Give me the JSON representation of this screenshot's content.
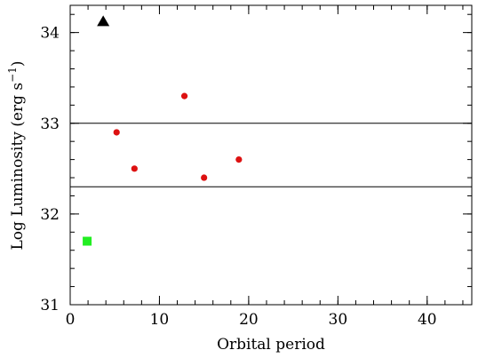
{
  "chart_data": {
    "type": "scatter",
    "xlabel": "Orbital period",
    "ylabel_main": "Log Luminosity (erg s",
    "ylabel_sup": "−1",
    "ylabel_close": ")",
    "xlim": [
      0,
      45
    ],
    "ylim": [
      31,
      34.3
    ],
    "xticks": [
      0,
      10,
      20,
      30,
      40
    ],
    "xtick_labels": [
      "0",
      "10",
      "20",
      "30",
      "40"
    ],
    "yticks": [
      31,
      32,
      33,
      34
    ],
    "ytick_labels": [
      "31",
      "32",
      "33",
      "34"
    ],
    "x_minor_step": 2,
    "y_minor_step": 0.2,
    "hlines": [
      33.0,
      32.3
    ],
    "series": [
      {
        "marker": "circle",
        "color": "#dd1111",
        "points": [
          {
            "x": 5.2,
            "y": 32.9
          },
          {
            "x": 7.2,
            "y": 32.5
          },
          {
            "x": 12.8,
            "y": 33.3
          },
          {
            "x": 15.0,
            "y": 32.4
          },
          {
            "x": 18.9,
            "y": 32.6
          }
        ]
      },
      {
        "marker": "triangle",
        "color": "#000000",
        "points": [
          {
            "x": 3.7,
            "y": 34.12
          }
        ]
      },
      {
        "marker": "square",
        "color": "#22ee22",
        "points": [
          {
            "x": 1.9,
            "y": 31.7
          }
        ]
      }
    ]
  }
}
